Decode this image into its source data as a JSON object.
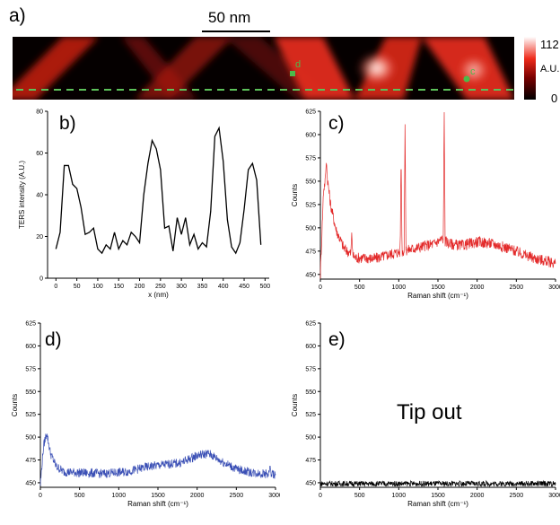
{
  "panels": {
    "a": "a)",
    "b": "b)",
    "c": "c)",
    "d": "d)",
    "e": "e)"
  },
  "ters_map": {
    "scale_bar": "50 nm",
    "colorbar_max": "112",
    "colorbar_unit": "A.U.",
    "colorbar_min": "0",
    "marker_c": "c",
    "marker_d": "d",
    "colors": {
      "map_high": "#ffffff",
      "map_mid": "#e8271a",
      "map_low": "#000000",
      "line_scan": "#5cc15a",
      "marker": "#4cbb4a"
    }
  },
  "annotation_e": "Tip out",
  "chart_data": [
    {
      "id": "b",
      "type": "line",
      "xlabel": "x (nm)",
      "ylabel": "TERS intensity (A.U.)",
      "xlim": [
        -20,
        510
      ],
      "ylim": [
        0,
        80
      ],
      "xticks": [
        0,
        50,
        100,
        150,
        200,
        250,
        300,
        350,
        400,
        450,
        500
      ],
      "yticks": [
        0,
        20,
        40,
        60,
        80
      ],
      "color": "#000000",
      "x": [
        0,
        10,
        20,
        30,
        40,
        50,
        60,
        70,
        80,
        90,
        100,
        110,
        120,
        130,
        140,
        150,
        160,
        170,
        180,
        190,
        200,
        210,
        220,
        230,
        240,
        250,
        260,
        270,
        280,
        290,
        300,
        310,
        320,
        330,
        340,
        350,
        360,
        370,
        380,
        390,
        400,
        410,
        420,
        430,
        440,
        450,
        460,
        470,
        480,
        490
      ],
      "y": [
        14,
        22,
        54,
        54,
        45,
        43,
        34,
        21,
        22,
        24,
        14,
        12,
        16,
        14,
        22,
        14,
        18,
        16,
        22,
        20,
        17,
        40,
        55,
        66,
        62,
        52,
        24,
        25,
        13,
        29,
        21,
        29,
        16,
        21,
        14,
        17,
        15,
        32,
        68,
        72,
        56,
        28,
        15,
        12,
        17,
        33,
        52,
        55,
        47,
        16
      ]
    },
    {
      "id": "c",
      "type": "line",
      "xlabel": "Raman shift (cm⁻¹)",
      "ylabel": "Counts",
      "xlim": [
        0,
        3000
      ],
      "ylim": [
        445,
        625
      ],
      "xticks": [
        0,
        500,
        1000,
        1500,
        2000,
        2500,
        3000
      ],
      "yticks": [
        450,
        475,
        500,
        525,
        550,
        575,
        600,
        625
      ],
      "color": "#e32a2a",
      "noise": 6,
      "baseline": [
        [
          0,
          450
        ],
        [
          40,
          540
        ],
        [
          80,
          560
        ],
        [
          130,
          525
        ],
        [
          200,
          498
        ],
        [
          300,
          478
        ],
        [
          450,
          468
        ],
        [
          700,
          467
        ],
        [
          900,
          472
        ],
        [
          1200,
          478
        ],
        [
          1450,
          483
        ],
        [
          1550,
          488
        ],
        [
          1650,
          483
        ],
        [
          1800,
          481
        ],
        [
          2000,
          485
        ],
        [
          2200,
          483
        ],
        [
          2400,
          478
        ],
        [
          2700,
          468
        ],
        [
          3000,
          462
        ]
      ],
      "peaks": [
        [
          75,
          570
        ],
        [
          400,
          495
        ],
        [
          1030,
          580
        ],
        [
          1080,
          611
        ],
        [
          1580,
          624
        ]
      ]
    },
    {
      "id": "d",
      "type": "line",
      "xlabel": "Raman shift (cm⁻¹)",
      "ylabel": "Counts",
      "xlim": [
        0,
        3000
      ],
      "ylim": [
        445,
        625
      ],
      "xticks": [
        0,
        500,
        1000,
        1500,
        2000,
        2500,
        3000
      ],
      "yticks": [
        450,
        475,
        500,
        525,
        550,
        575,
        600,
        625
      ],
      "color": "#3a4fb5",
      "noise": 5,
      "baseline": [
        [
          0,
          448
        ],
        [
          40,
          490
        ],
        [
          80,
          505
        ],
        [
          130,
          482
        ],
        [
          200,
          468
        ],
        [
          300,
          462
        ],
        [
          500,
          461
        ],
        [
          800,
          460
        ],
        [
          1100,
          462
        ],
        [
          1400,
          468
        ],
        [
          1600,
          470
        ],
        [
          1800,
          472
        ],
        [
          2000,
          480
        ],
        [
          2150,
          482
        ],
        [
          2300,
          474
        ],
        [
          2500,
          465
        ],
        [
          2700,
          461
        ],
        [
          3000,
          459
        ]
      ],
      "peaks": [
        [
          2930,
          470
        ]
      ]
    },
    {
      "id": "e",
      "type": "line",
      "xlabel": "Raman shift (cm⁻¹)",
      "ylabel": "Counts",
      "xlim": [
        0,
        3000
      ],
      "ylim": [
        445,
        625
      ],
      "xticks": [
        0,
        500,
        1000,
        1500,
        2000,
        2500,
        3000
      ],
      "yticks": [
        450,
        475,
        500,
        525,
        550,
        575,
        600,
        625
      ],
      "color": "#000000",
      "noise": 3,
      "baseline": [
        [
          0,
          449
        ],
        [
          3000,
          449
        ]
      ],
      "peaks": []
    }
  ]
}
